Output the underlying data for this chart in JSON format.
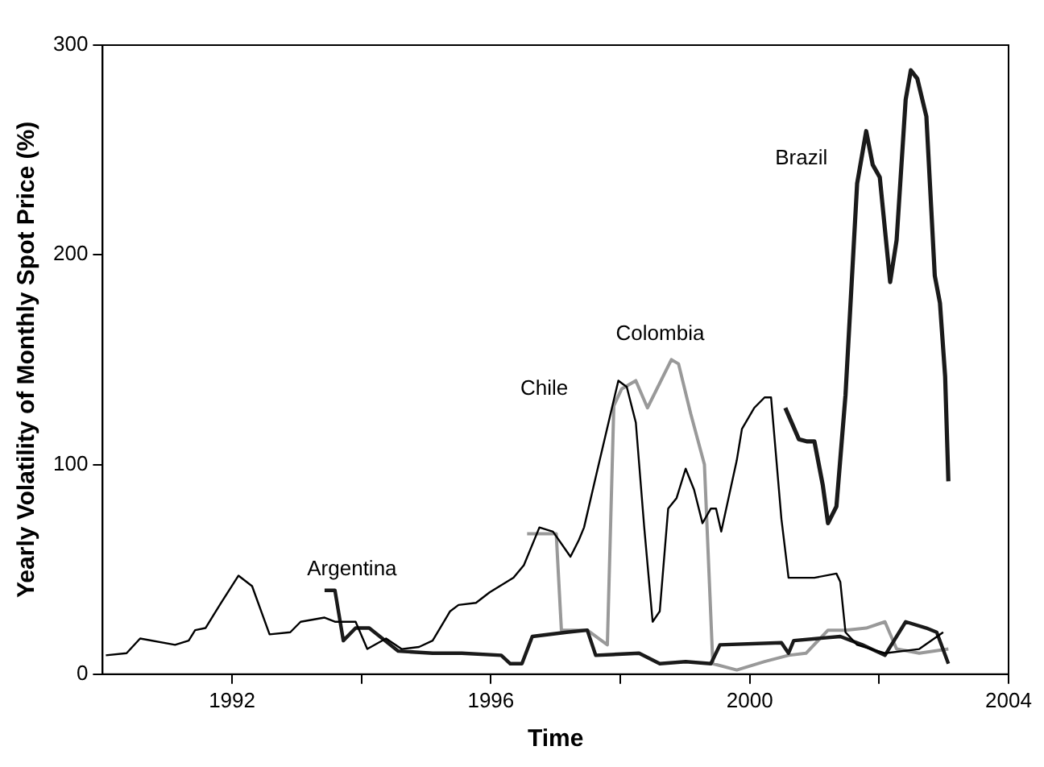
{
  "chart_data": {
    "type": "line",
    "xlabel": "Time",
    "ylabel": "Yearly Volatility of Monthly Spot Price (%)",
    "xlim": [
      1990,
      2004
    ],
    "xticks": [
      {
        "value": 1992,
        "label": "1992"
      },
      {
        "value": 1994,
        "label": null
      },
      {
        "value": 1996,
        "label": "1996"
      },
      {
        "value": 1998,
        "label": null
      },
      {
        "value": 2000,
        "label": "2000"
      },
      {
        "value": 2002,
        "label": null
      },
      {
        "value": 2004,
        "label": "2004"
      }
    ],
    "ylim": [
      0,
      300
    ],
    "yticks": [
      0,
      100,
      200,
      300
    ],
    "grid": false,
    "legend": false,
    "marker": "none",
    "line_style": "solid",
    "series": [
      {
        "name": "Chile",
        "color": "#000000",
        "x": [
          1990.05,
          1990.37,
          1990.58,
          1991.12,
          1991.33,
          1991.43,
          1991.59,
          1991.83,
          1992.1,
          1992.31,
          1992.58,
          1992.9,
          1993.06,
          1993.43,
          1993.59,
          1993.91,
          1994.09,
          1994.38,
          1994.62,
          1994.89,
          1995.1,
          1995.37,
          1995.5,
          1995.77,
          1995.98,
          1996.35,
          1996.51,
          1996.75,
          1996.96,
          1997.23,
          1997.36,
          1997.44,
          1997.62,
          1997.97,
          1998.1,
          1998.24,
          1998.37,
          1998.5,
          1998.61,
          1998.74,
          1998.87,
          1999.01,
          1999.14,
          1999.27,
          1999.4,
          1999.48,
          1999.56,
          1999.8,
          1999.88,
          2000.07,
          2000.23,
          2000.33,
          2000.49,
          2000.6,
          2001.0,
          2001.34,
          2001.4,
          2001.48,
          2001.66,
          2002.09,
          2002.62,
          2002.99
        ],
        "values": [
          9,
          10,
          17,
          14,
          16,
          21,
          22,
          34,
          47,
          42,
          19,
          20,
          25,
          27,
          25,
          25,
          12,
          17,
          12,
          13,
          16,
          30,
          33,
          34,
          39,
          46,
          52,
          70,
          68,
          56,
          64,
          70,
          94,
          140,
          137,
          120,
          70,
          25,
          30,
          79,
          84,
          98,
          88,
          72,
          79,
          79,
          68,
          102,
          117,
          127,
          132,
          132,
          74,
          46,
          46,
          48,
          44,
          20,
          14,
          10,
          12,
          20
        ]
      },
      {
        "name": "Argentina",
        "color": "#1a1a1a",
        "x": [
          1993.43,
          1993.59,
          1993.72,
          1993.91,
          1994.12,
          1994.57,
          1995.1,
          1995.55,
          1996.16,
          1996.3,
          1996.48,
          1996.64,
          1997.17,
          1997.49,
          1997.62,
          1998.29,
          1998.61,
          1999.01,
          1999.4,
          1999.54,
          2000.49,
          2000.6,
          2000.68,
          2001.4,
          2001.74,
          2002.09,
          2002.41,
          2002.73,
          2002.89,
          2003.07
        ],
        "values": [
          40,
          40,
          16,
          22,
          22,
          11,
          10,
          10,
          9,
          5,
          5,
          18,
          20,
          21,
          9,
          10,
          5,
          6,
          5,
          14,
          15,
          10,
          16,
          18,
          14,
          9,
          25,
          22,
          20,
          5
        ]
      },
      {
        "name": "Colombia",
        "color": "#999999",
        "x": [
          1996.56,
          1997.01,
          1997.09,
          1997.49,
          1997.8,
          1997.9,
          1998.02,
          1998.24,
          1998.42,
          1998.79,
          1998.9,
          1999.09,
          1999.3,
          1999.43,
          1999.8,
          2000.23,
          2000.6,
          2000.87,
          2001.21,
          2001.48,
          2001.8,
          2002.09,
          2002.27,
          2002.62,
          2003.07
        ],
        "values": [
          67,
          67,
          21,
          21,
          14,
          128,
          136,
          140,
          127,
          150,
          148,
          124,
          100,
          5,
          2,
          6,
          9,
          10,
          21,
          21,
          22,
          25,
          12,
          10,
          12
        ]
      },
      {
        "name": "Brazil",
        "color": "#1a1a1a",
        "x": [
          2000.55,
          2000.76,
          2000.89,
          2001.0,
          2001.13,
          2001.21,
          2001.34,
          2001.48,
          2001.66,
          2001.8,
          2001.9,
          2002.01,
          2002.17,
          2002.27,
          2002.41,
          2002.49,
          2002.59,
          2002.73,
          2002.86,
          2002.94,
          2003.02,
          2003.07
        ],
        "values": [
          127,
          112,
          111,
          111,
          90,
          72,
          80,
          133,
          234,
          259,
          243,
          237,
          187,
          207,
          274,
          288,
          284,
          266,
          190,
          177,
          142,
          92
        ]
      }
    ]
  }
}
